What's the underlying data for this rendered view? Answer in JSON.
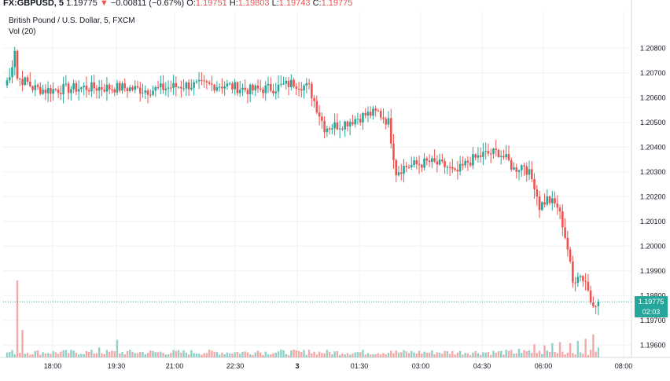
{
  "header": {
    "symbol": "FX:GBPUSD, 5",
    "last": "1.19775",
    "arrow": "▼",
    "change": "−0.00811 (−0.67%)",
    "o_label": "O:",
    "o_value": "1.19751",
    "h_label": "H:",
    "h_value": "1.19803",
    "l_label": "L:",
    "l_value": "1.19743",
    "c_label": "C:",
    "c_value": "1.19775"
  },
  "legend": {
    "series_title": "British Pound / U.S. Dollar, 5, FXCM",
    "volume_title": "Vol (20)"
  },
  "price_badge": "1.19775",
  "countdown": "02:03",
  "colors": {
    "up": "#26a69a",
    "down": "#ef5350",
    "up_vol": "#8fd1c8",
    "down_vol": "#f3a9a7",
    "grid": "#eef0f3"
  },
  "chart_data": {
    "type": "candlestick",
    "y_axis": {
      "min": 1.1955,
      "max": 1.2095,
      "ticks": [
        1.208,
        1.207,
        1.206,
        1.205,
        1.204,
        1.203,
        1.202,
        1.201,
        1.2,
        1.199,
        1.198,
        1.197,
        1.196
      ],
      "tick_labels": [
        "1.20800",
        "1.20700",
        "1.20600",
        "1.20500",
        "1.20400",
        "1.20300",
        "1.20200",
        "1.20100",
        "1.20000",
        "1.19900",
        "1.19800",
        "1.19700",
        "1.19600"
      ]
    },
    "x_axis": {
      "ticks": [
        "18:00",
        "19:30",
        "21:00",
        "22:30",
        "3",
        "01:30",
        "03:00",
        "04:30",
        "06:00",
        "08:00"
      ]
    },
    "last_price": 1.19775,
    "anchors": [
      [
        0,
        1.2067
      ],
      [
        1,
        1.2068
      ],
      [
        3,
        1.208
      ],
      [
        4,
        1.2068
      ],
      [
        8,
        1.2066
      ],
      [
        10,
        1.2064
      ],
      [
        15,
        1.2063
      ],
      [
        30,
        1.2064
      ],
      [
        45,
        1.2064
      ],
      [
        55,
        1.2063
      ],
      [
        70,
        1.2065
      ],
      [
        85,
        1.2065
      ],
      [
        95,
        1.2063
      ],
      [
        105,
        1.2064
      ],
      [
        112,
        1.2066
      ],
      [
        118,
        1.2064
      ],
      [
        124,
        1.2048
      ],
      [
        130,
        1.2049
      ],
      [
        140,
        1.2053
      ],
      [
        145,
        1.2054
      ],
      [
        149,
        1.205
      ],
      [
        152,
        1.203
      ],
      [
        155,
        1.2032
      ],
      [
        165,
        1.2034
      ],
      [
        172,
        1.2032
      ],
      [
        175,
        1.2029
      ],
      [
        180,
        1.2034
      ],
      [
        186,
        1.2037
      ],
      [
        192,
        1.2038
      ],
      [
        196,
        1.2034
      ],
      [
        198,
        1.2031
      ],
      [
        202,
        1.2033
      ],
      [
        206,
        1.2025
      ],
      [
        208,
        1.2016
      ],
      [
        211,
        1.2019
      ],
      [
        215,
        1.2016
      ],
      [
        217,
        1.2009
      ],
      [
        219,
        1.1999
      ],
      [
        221,
        1.1985
      ],
      [
        223,
        1.1989
      ],
      [
        226,
        1.1986
      ],
      [
        228,
        1.1978
      ],
      [
        231,
        1.19775
      ]
    ],
    "volume": {
      "baseline": 0.55,
      "spikes": [
        [
          4,
          7.0
        ],
        [
          6,
          2.5
        ],
        [
          43,
          1.6
        ],
        [
          36,
          0.9
        ],
        [
          98,
          0.6
        ],
        [
          118,
          0.7
        ],
        [
          150,
          0.6
        ],
        [
          200,
          0.8
        ],
        [
          206,
          1.2
        ],
        [
          210,
          1.1
        ],
        [
          213,
          1.3
        ],
        [
          216,
          1.4
        ],
        [
          220,
          1.3
        ],
        [
          223,
          1.5
        ],
        [
          226,
          1.7
        ],
        [
          229,
          2.1
        ],
        [
          231,
          0.9
        ]
      ]
    }
  }
}
